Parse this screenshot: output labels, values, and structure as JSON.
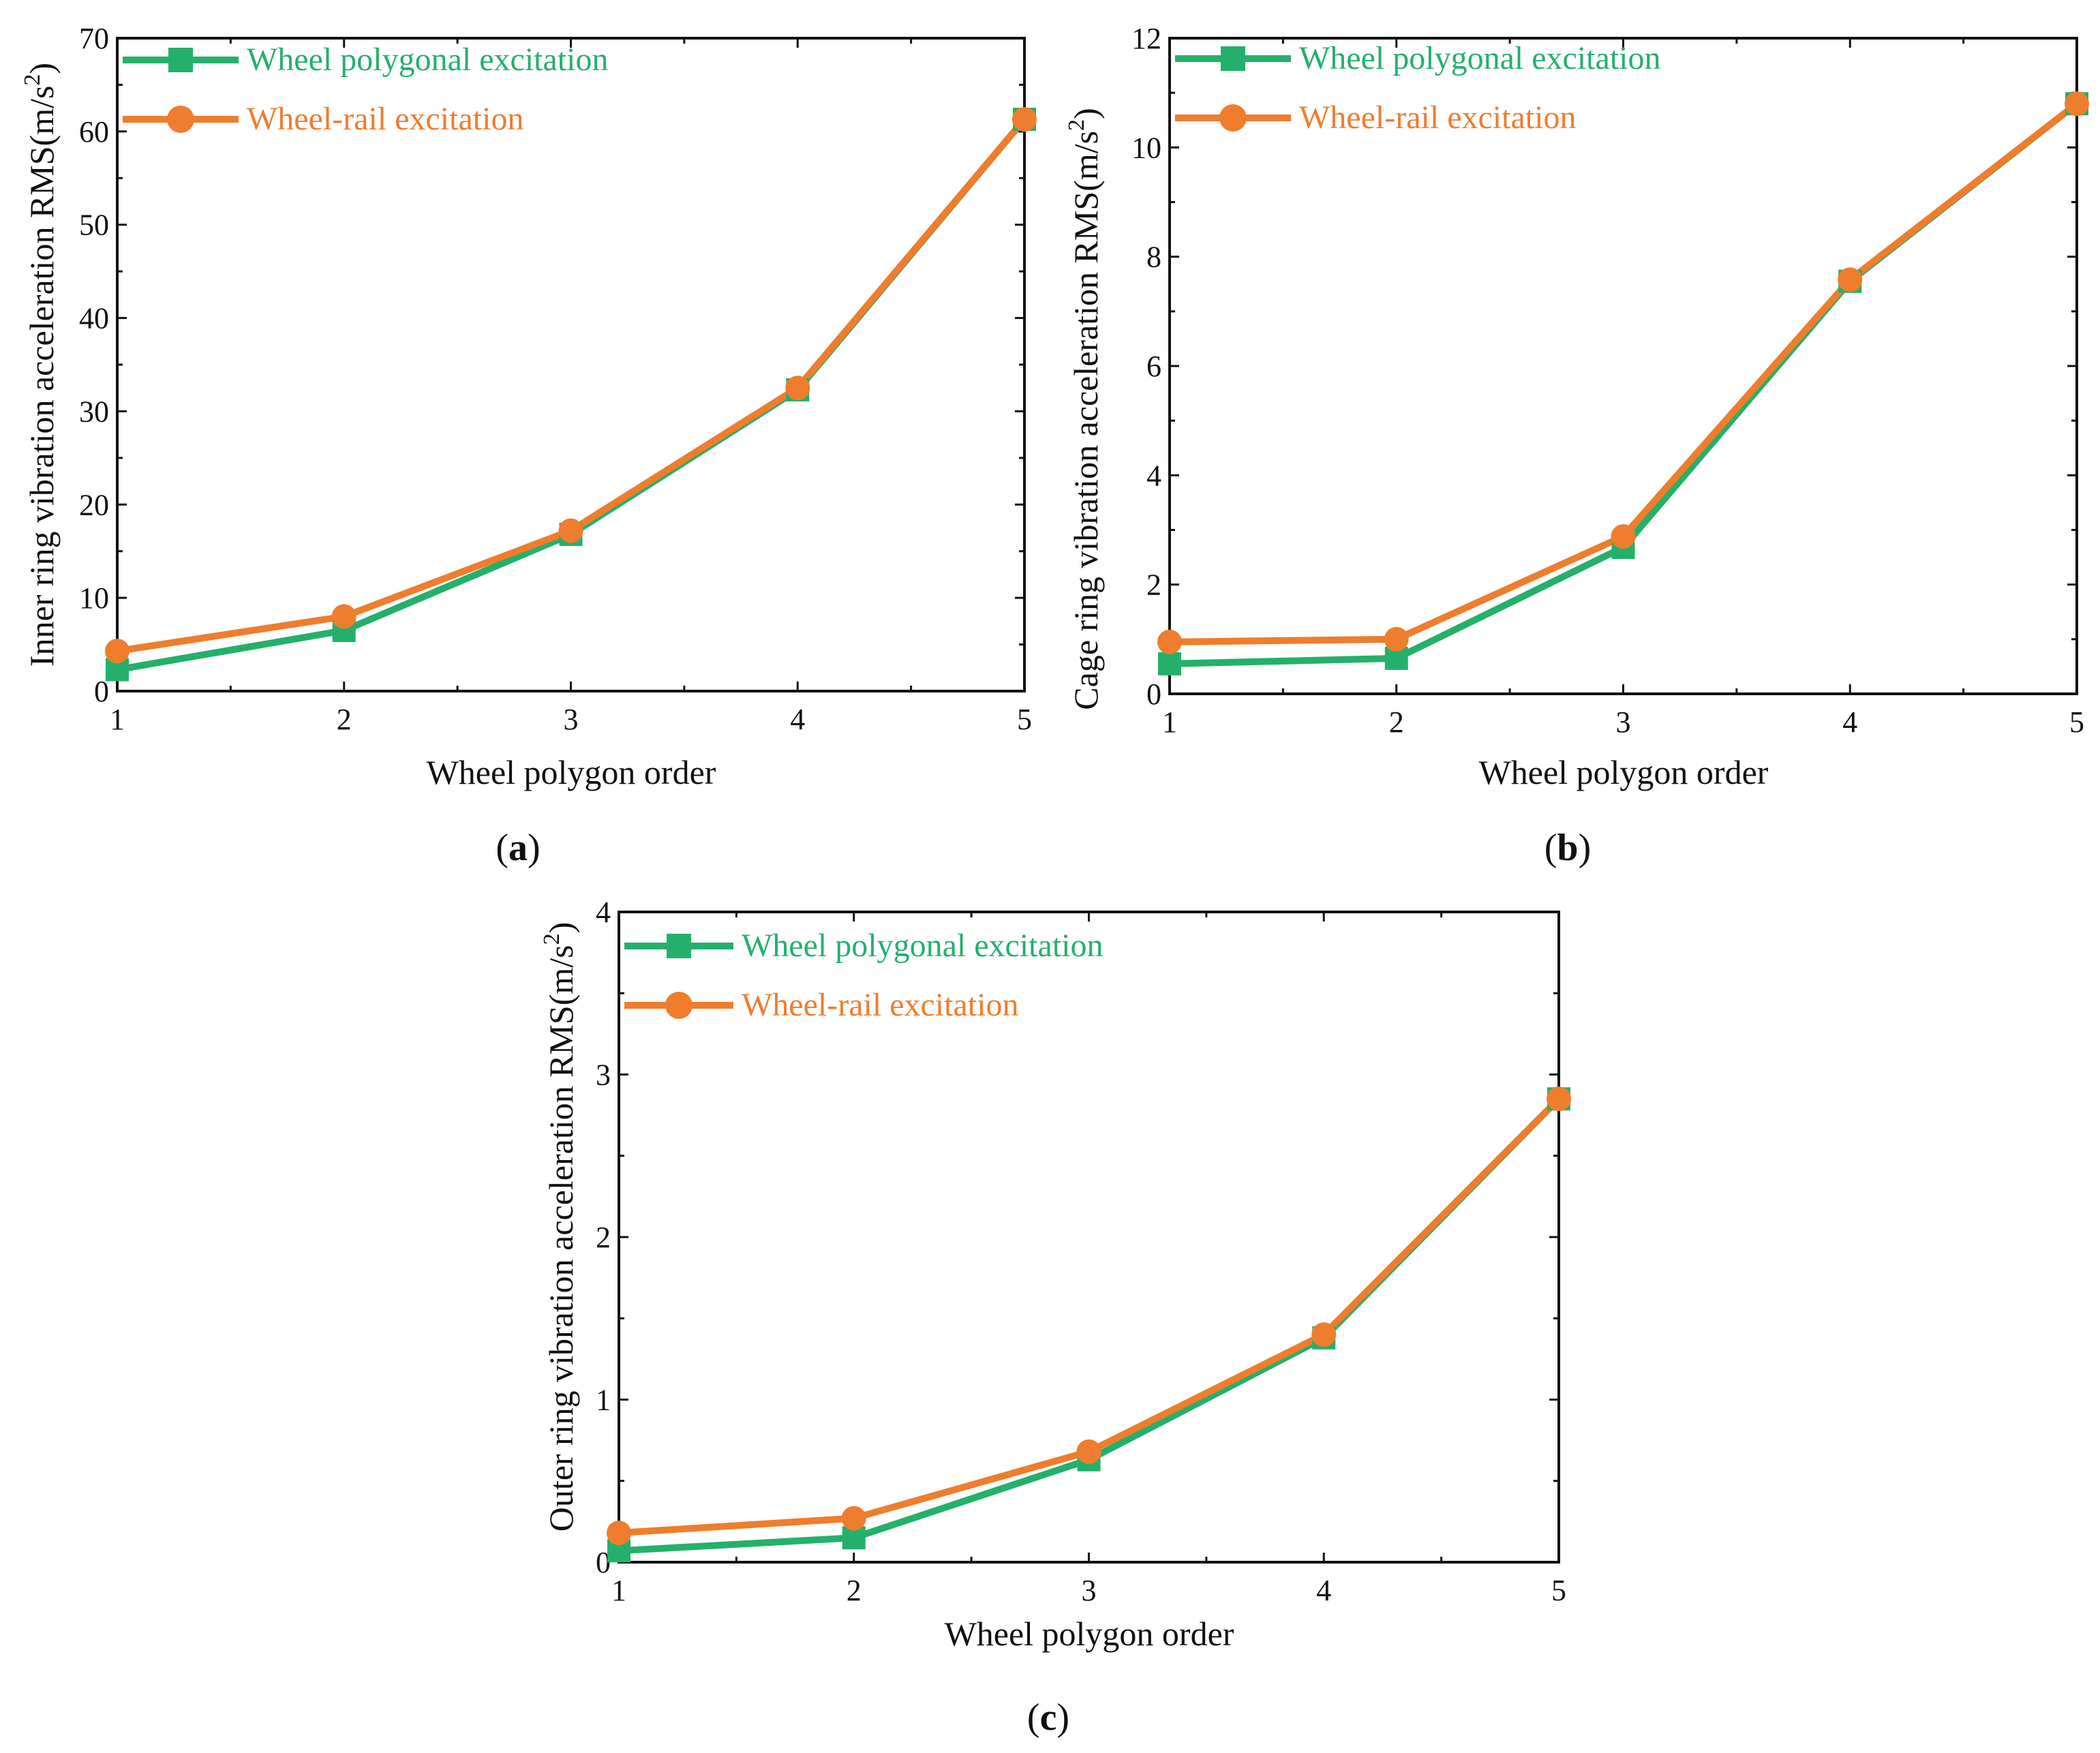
{
  "figure": {
    "colors": {
      "series_1": "#24b06b",
      "series_2": "#ef7d2d",
      "axis": "#111111"
    }
  },
  "chart_data": [
    {
      "id": "a",
      "type": "line",
      "panel_label": "a",
      "xlabel": "Wheel polygon order",
      "ylabel": "Inner ring vibration acceleration RMS(m/s",
      "ylabel_sup": "2",
      "ylabel_close": ")",
      "x": [
        1,
        2,
        3,
        4,
        5
      ],
      "xlim": [
        1,
        5
      ],
      "ylim": [
        0,
        70
      ],
      "xticks": [
        1,
        2,
        3,
        4,
        5
      ],
      "yticks": [
        0,
        10,
        20,
        30,
        40,
        50,
        60,
        70
      ],
      "legend_position": "top-left",
      "series": [
        {
          "name": "Wheel polygonal excitation",
          "marker": "square",
          "values": [
            2.3,
            6.5,
            16.8,
            32.3,
            61.3
          ]
        },
        {
          "name": "Wheel-rail excitation",
          "marker": "circle",
          "values": [
            4.3,
            8.0,
            17.2,
            32.5,
            61.3
          ]
        }
      ]
    },
    {
      "id": "b",
      "type": "line",
      "panel_label": "b",
      "xlabel": "Wheel polygon order",
      "ylabel": "Cage ring vibration acceleration RMS(m/s",
      "ylabel_sup": "2",
      "ylabel_close": ")",
      "x": [
        1,
        2,
        3,
        4,
        5
      ],
      "xlim": [
        1,
        5
      ],
      "ylim": [
        0,
        12
      ],
      "xticks": [
        1,
        2,
        3,
        4,
        5
      ],
      "yticks": [
        0,
        2,
        4,
        6,
        8,
        10,
        12
      ],
      "legend_position": "top-left",
      "series": [
        {
          "name": "Wheel polygonal excitation",
          "marker": "square",
          "values": [
            0.55,
            0.65,
            2.68,
            7.55,
            10.8
          ]
        },
        {
          "name": "Wheel-rail excitation",
          "marker": "circle",
          "values": [
            0.95,
            1.0,
            2.88,
            7.58,
            10.8
          ]
        }
      ]
    },
    {
      "id": "c",
      "type": "line",
      "panel_label": "c",
      "xlabel": "Wheel polygon order",
      "ylabel": "Outer ring vibration acceleration RMS(m/s",
      "ylabel_sup": "2",
      "ylabel_close": ")",
      "x": [
        1,
        2,
        3,
        4,
        5
      ],
      "xlim": [
        1,
        5
      ],
      "ylim": [
        0,
        4
      ],
      "xticks": [
        1,
        2,
        3,
        4,
        5
      ],
      "yticks": [
        0,
        1,
        2,
        3,
        4
      ],
      "legend_position": "top-left",
      "series": [
        {
          "name": "Wheel polygonal excitation",
          "marker": "square",
          "values": [
            0.07,
            0.15,
            0.63,
            1.38,
            2.85
          ]
        },
        {
          "name": "Wheel-rail excitation",
          "marker": "circle",
          "values": [
            0.18,
            0.27,
            0.68,
            1.4,
            2.85
          ]
        }
      ]
    }
  ]
}
